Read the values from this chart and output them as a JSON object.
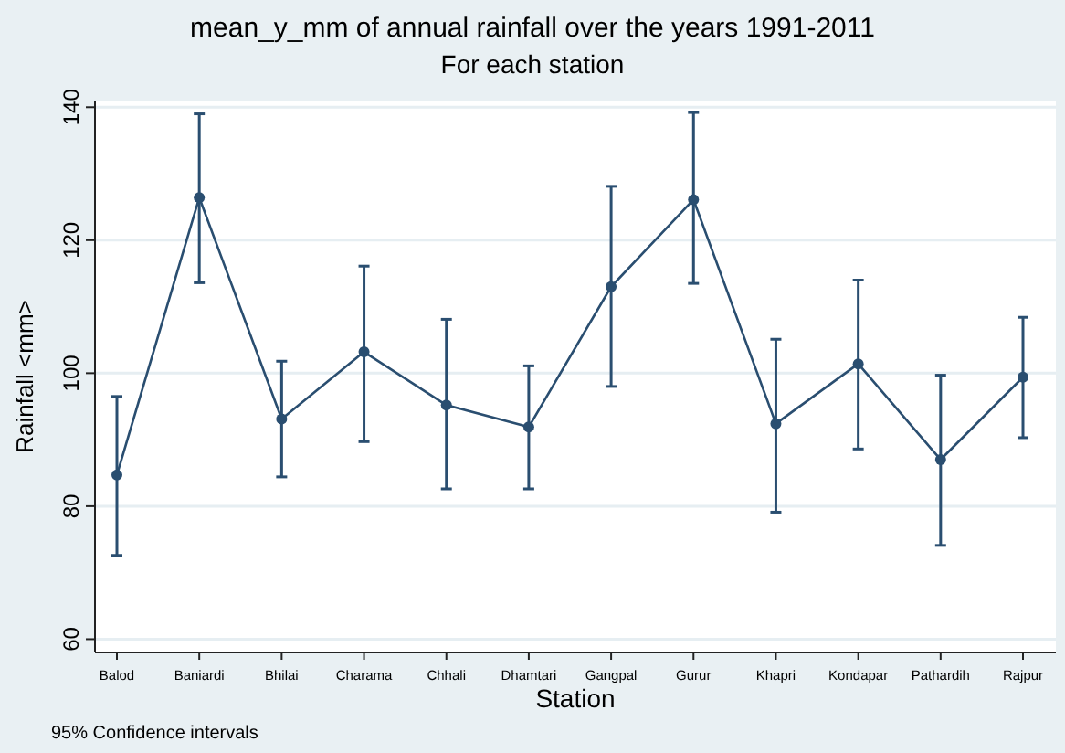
{
  "chart_data": {
    "type": "line",
    "title": "mean_y_mm of annual rainfall over the years 1991-2011",
    "subtitle": "For each station",
    "xlabel": "Station",
    "ylabel": "Rainfall <mm>",
    "annotations": [
      "95% Confidence intervals"
    ],
    "categories": [
      "Balod",
      "Baniardi",
      "Bhilai",
      "Charama",
      "Chhali",
      "Dhamtari",
      "Gangpal",
      "Gurur",
      "Khapri",
      "Kondapar",
      "Pathardih",
      "Rajpur"
    ],
    "series": [
      {
        "color": "#2a4e70",
        "values": [
          84.7,
          126.4,
          93.1,
          103.2,
          95.2,
          91.9,
          113,
          126.1,
          92.4,
          101.4,
          87,
          99.4
        ],
        "errors": [
          [
            72.6,
            96.5
          ],
          [
            113.6,
            139
          ],
          [
            84.4,
            101.8
          ],
          [
            89.7,
            116.1
          ],
          [
            82.6,
            108.1
          ],
          [
            82.6,
            101.1
          ],
          [
            98,
            128.1
          ],
          [
            113.5,
            139.2
          ],
          [
            79.1,
            105.1
          ],
          [
            88.6,
            114
          ],
          [
            74.1,
            99.7
          ],
          [
            90.3,
            108.4
          ]
        ]
      }
    ],
    "ylim": [
      58,
      141
    ],
    "yticks": [
      60,
      80,
      100,
      120,
      140
    ],
    "grid": "y",
    "marker": "circle",
    "line_style": "solid"
  }
}
